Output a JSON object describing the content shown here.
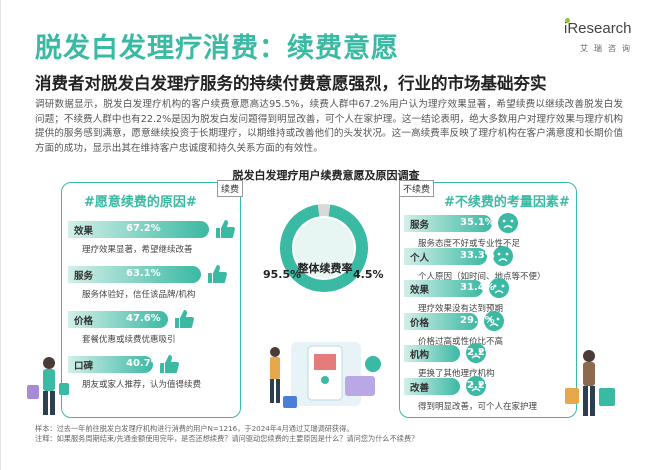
{
  "header": {
    "title": "脱发白发理疗消费：续费意愿",
    "brand": "iResearch",
    "brand_sub": "艾瑞咨询",
    "subtitle": "消费者对脱发白发理疗服务的持续付费意愿强烈，行业的市场基础夯实"
  },
  "body": {
    "paragraph": "调研数据显示，脱发白发理疗机构的客户续费意愿高达95.5%，续费人群中67.2%用户认为理疗效果显著，希望续费以继续改善脱发白发问题；不续费人群中也有22.2%是因为脱发白发问题得到明显改善，可个人在家护理。这一结论表明，绝大多数用户对理疗效果与理疗机构提供的服务感到满意，愿意继续投资于长期理疗，以期维持或改善他们的头发状况。这一高续费率反映了理疗机构在客户满意度和长期价值方面的成功，显示出其在维持客户忠诚度和持久关系方面的有效性。"
  },
  "colors": {
    "accent": "#3ab9a3",
    "accent_light": "#d3efe9",
    "donut_gray": "#d9d9d9"
  },
  "chart_data": [
    {
      "type": "pie",
      "title": "脱发白发理疗用户续费意愿及原因调查",
      "center_label": "整体续费率",
      "slices": [
        {
          "name": "续费",
          "value": 95.5,
          "label": "95.5%"
        },
        {
          "name": "不续费",
          "value": 4.5,
          "label": "4.5%"
        }
      ]
    },
    {
      "type": "bar",
      "panel_tag": "续费",
      "title": "#愿意续费的原因#",
      "categories": [
        "效果",
        "服务",
        "价格",
        "口碑"
      ],
      "values": [
        67.2,
        63.1,
        47.6,
        40.7
      ],
      "value_labels": [
        "67.2%",
        "63.1%",
        "47.6%",
        "40.7%"
      ],
      "notes": [
        "理疗效果显著，希望继续改善",
        "服务体验好，信任该品牌/机构",
        "套餐优惠或续费优惠吸引",
        "朋友或家人推荐，认为值得续费"
      ],
      "xlim": [
        0,
        100
      ]
    },
    {
      "type": "bar",
      "panel_tag": "不续费",
      "title": "#不续费的考量因素#",
      "categories": [
        "服务",
        "个人",
        "效果",
        "价格",
        "机构",
        "改善"
      ],
      "values": [
        35.1,
        33.3,
        31.4,
        29.6,
        22.2,
        22.2
      ],
      "value_labels": [
        "35.1%",
        "33.3%",
        "31.4%",
        "29.6%",
        "22.2%",
        "22.2%"
      ],
      "notes": [
        "服务态度不好或专业性不足",
        "个人原因（如时间、地点等不便）",
        "理疗效果没有达到预期",
        "价格过高或性价比不高",
        "更换了其他理疗机构",
        "得到明显改善，可个人在家护理"
      ],
      "xlim": [
        0,
        60
      ]
    }
  ],
  "footer": {
    "line1": "样本：过去一年前往脱发白发理疗机构进行消费的用户N=1216，于2024年4月通过艾瑞调研获得。",
    "line2": "注释：如果服务周期结束/先通金额使用完毕，是否还想续费？请问驱动您续费的主要原因是什么？请问您为什么不续费？"
  }
}
